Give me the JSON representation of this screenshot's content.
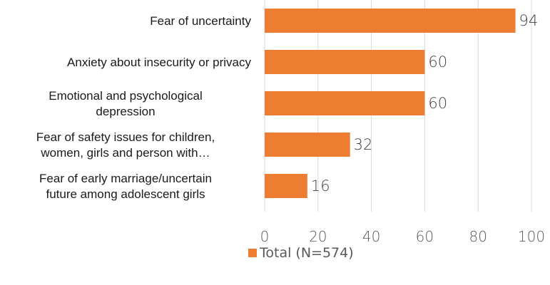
{
  "chart_data": {
    "type": "bar",
    "orientation": "horizontal",
    "categories": [
      [
        "Fear of uncertainty"
      ],
      [
        "Anxiety about insecurity or privacy"
      ],
      [
        "Emotional and psychological",
        "depression"
      ],
      [
        "Fear of safety issues for children,",
        "women, girls and person with…"
      ],
      [
        "Fear of early marriage/uncertain",
        "future among adolescent girls"
      ]
    ],
    "series": [
      {
        "name": "Total (N=574)",
        "values": [
          94,
          60,
          60,
          32,
          16
        ]
      }
    ],
    "xlim": [
      0,
      100
    ],
    "xticks": [
      0,
      20,
      40,
      60,
      80,
      100
    ],
    "grid": true,
    "legend_position": "bottom",
    "colors": {
      "bar": "#ED7D31",
      "grid": "#D9D9D9"
    }
  }
}
